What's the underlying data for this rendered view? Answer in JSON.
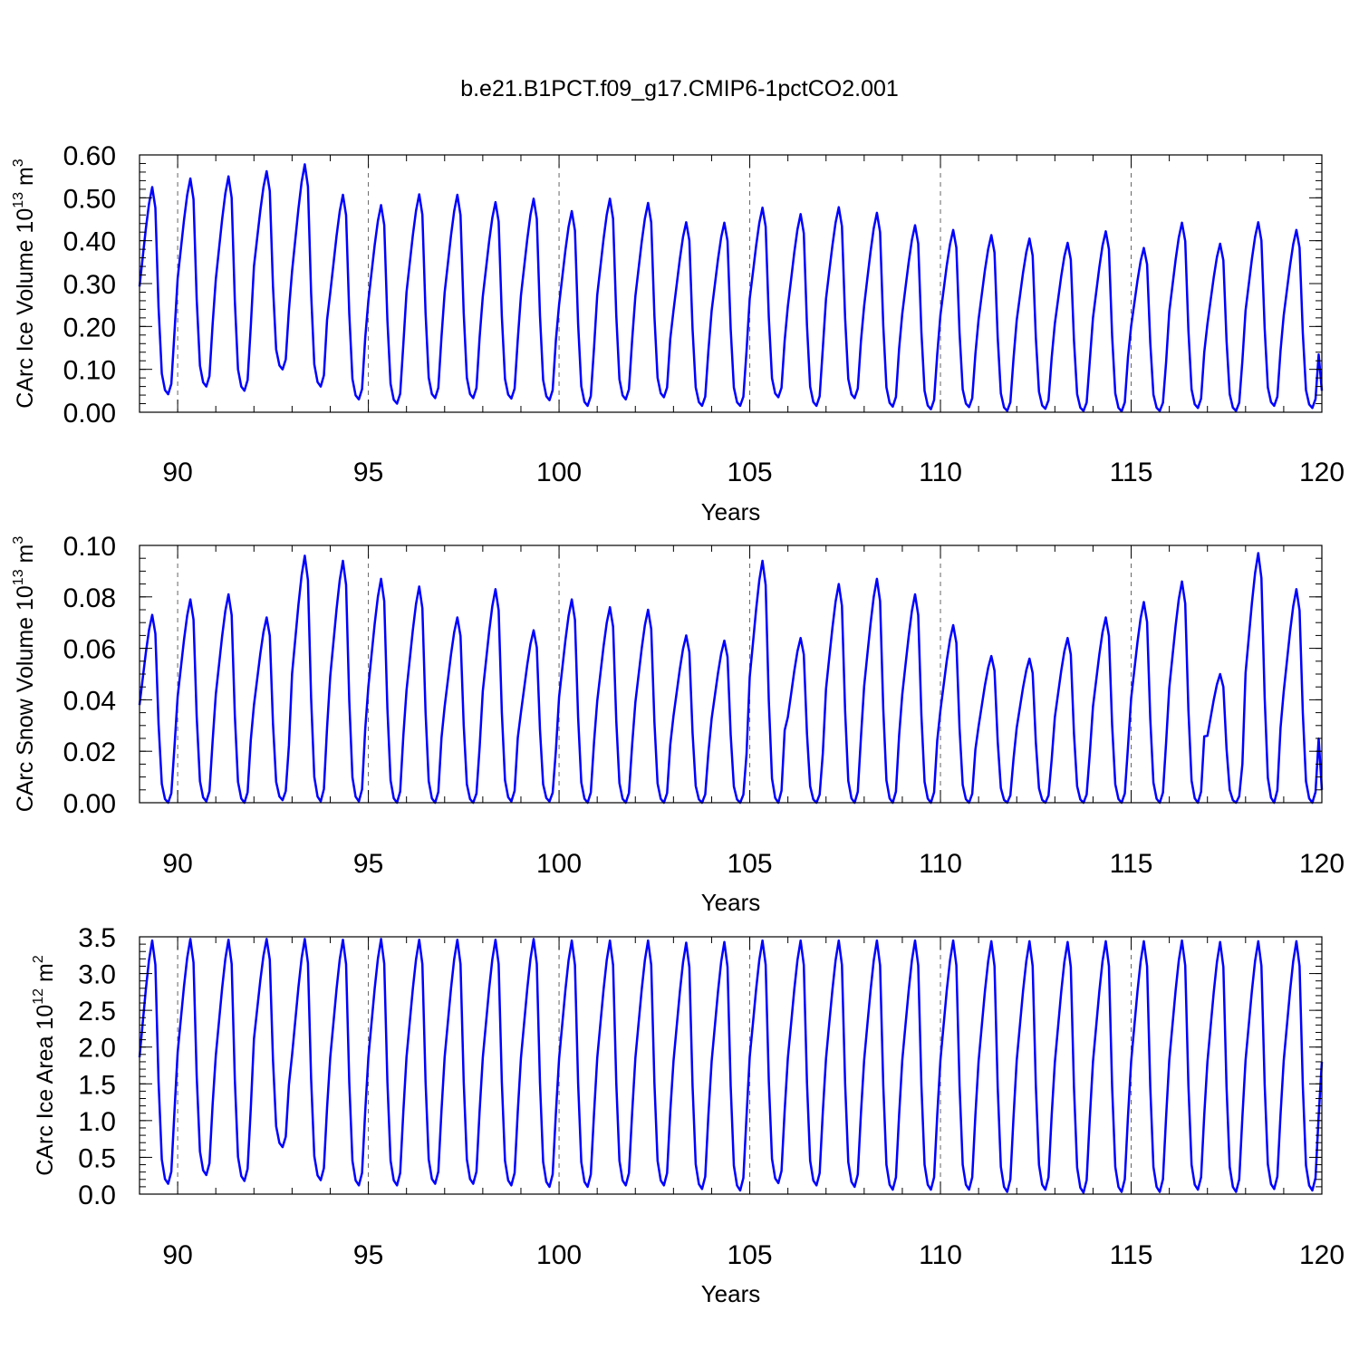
{
  "title": "b.e21.B1PCT.f09_g17.CMIP6-1pctCO2.001",
  "colors": {
    "series": "#0000ff",
    "frame": "#000000",
    "vline": "#666666"
  },
  "chart_data": [
    {
      "type": "line",
      "ylabel_main": "CArc Ice Volume 10",
      "ylabel_exp": "13",
      "ylabel_unit": " m",
      "ylabel_unit_exp": "3",
      "xlabel": "Years",
      "xlim": [
        89,
        120
      ],
      "ylim": [
        0,
        0.6
      ],
      "yticks": [
        "0.00",
        "0.10",
        "0.20",
        "0.30",
        "0.40",
        "0.50",
        "0.60"
      ],
      "yminor": 0.02,
      "xticks": [
        "90",
        "95",
        "100",
        "105",
        "110",
        "115",
        "120"
      ],
      "vlines": [
        90,
        95,
        100,
        105,
        110,
        115
      ],
      "grid": false,
      "start_year": 89,
      "series": [
        {
          "color": "#0000ff",
          "cycle_max": [
            0.525,
            0.545,
            0.55,
            0.562,
            0.578,
            0.507,
            0.483,
            0.508,
            0.507,
            0.49,
            0.498,
            0.469,
            0.498,
            0.488,
            0.443,
            0.442,
            0.477,
            0.462,
            0.478,
            0.465,
            0.436,
            0.425,
            0.413,
            0.405,
            0.395,
            0.422,
            0.383,
            0.442,
            0.393,
            0.443,
            0.425
          ],
          "cycle_min": [
            0.042,
            0.06,
            0.05,
            0.1,
            0.06,
            0.03,
            0.02,
            0.033,
            0.033,
            0.032,
            0.028,
            0.015,
            0.03,
            0.035,
            0.015,
            0.015,
            0.035,
            0.015,
            0.033,
            0.013,
            0.007,
            0.012,
            0.003,
            0.008,
            0.003,
            0.002,
            0.003,
            0.01,
            0.003,
            0.015,
            0.01
          ],
          "end_value": 0.05
        }
      ]
    },
    {
      "type": "line",
      "ylabel_main": "CArc Snow Volume 10",
      "ylabel_exp": "13",
      "ylabel_unit": " m",
      "ylabel_unit_exp": "3",
      "xlabel": "Years",
      "xlim": [
        89,
        120
      ],
      "ylim": [
        0,
        0.1
      ],
      "yticks": [
        "0.00",
        "0.02",
        "0.04",
        "0.06",
        "0.08",
        "0.10"
      ],
      "yminor": 0.005,
      "xticks": [
        "90",
        "95",
        "100",
        "105",
        "110",
        "115",
        "120"
      ],
      "vlines": [
        90,
        95,
        100,
        105,
        110,
        115
      ],
      "grid": false,
      "start_year": 89,
      "series": [
        {
          "color": "#0000ff",
          "cycle_max": [
            0.073,
            0.079,
            0.081,
            0.072,
            0.096,
            0.094,
            0.087,
            0.084,
            0.072,
            0.083,
            0.067,
            0.079,
            0.076,
            0.075,
            0.065,
            0.063,
            0.094,
            0.064,
            0.085,
            0.087,
            0.081,
            0.069,
            0.057,
            0.056,
            0.064,
            0.072,
            0.078,
            0.086,
            0.05,
            0.097,
            0.083
          ],
          "cycle_min": [
            0,
            0.0005,
            0,
            0.001,
            0.0005,
            0.0005,
            0,
            0,
            0,
            0.0005,
            0.0005,
            0,
            0,
            0,
            0,
            0,
            0,
            0,
            0,
            0,
            0,
            0,
            0,
            0,
            0,
            0,
            0,
            0,
            0,
            0,
            0
          ],
          "end_value": 0.005
        }
      ]
    },
    {
      "type": "line",
      "ylabel_main": "CArc Ice Area 10",
      "ylabel_exp": "12",
      "ylabel_unit": " m",
      "ylabel_unit_exp": "2",
      "xlabel": "Years",
      "xlim": [
        89,
        120
      ],
      "ylim": [
        0,
        3.5
      ],
      "yticks": [
        "0.0",
        "0.5",
        "1.0",
        "1.5",
        "2.0",
        "2.5",
        "3.0",
        "3.5"
      ],
      "yminor": 0.1,
      "xticks": [
        "90",
        "95",
        "100",
        "105",
        "110",
        "115",
        "120"
      ],
      "vlines": [
        90,
        95,
        100,
        105,
        110,
        115
      ],
      "grid": false,
      "start_year": 89,
      "series": [
        {
          "color": "#0000ff",
          "cycle_max": [
            3.45,
            3.47,
            3.46,
            3.47,
            3.47,
            3.46,
            3.47,
            3.46,
            3.46,
            3.46,
            3.47,
            3.45,
            3.45,
            3.45,
            3.42,
            3.43,
            3.45,
            3.45,
            3.45,
            3.45,
            3.45,
            3.45,
            3.44,
            3.44,
            3.43,
            3.44,
            3.44,
            3.45,
            3.43,
            3.44,
            3.44
          ],
          "cycle_min": [
            0.14,
            0.26,
            0.18,
            0.64,
            0.19,
            0.12,
            0.12,
            0.14,
            0.14,
            0.12,
            0.1,
            0.1,
            0.12,
            0.12,
            0.07,
            0.05,
            0.15,
            0.12,
            0.1,
            0.06,
            0.06,
            0.06,
            0.03,
            0.06,
            0.02,
            0.03,
            0.03,
            0.06,
            0.03,
            0.07,
            0.05
          ],
          "end_value": 1.8
        }
      ]
    }
  ]
}
